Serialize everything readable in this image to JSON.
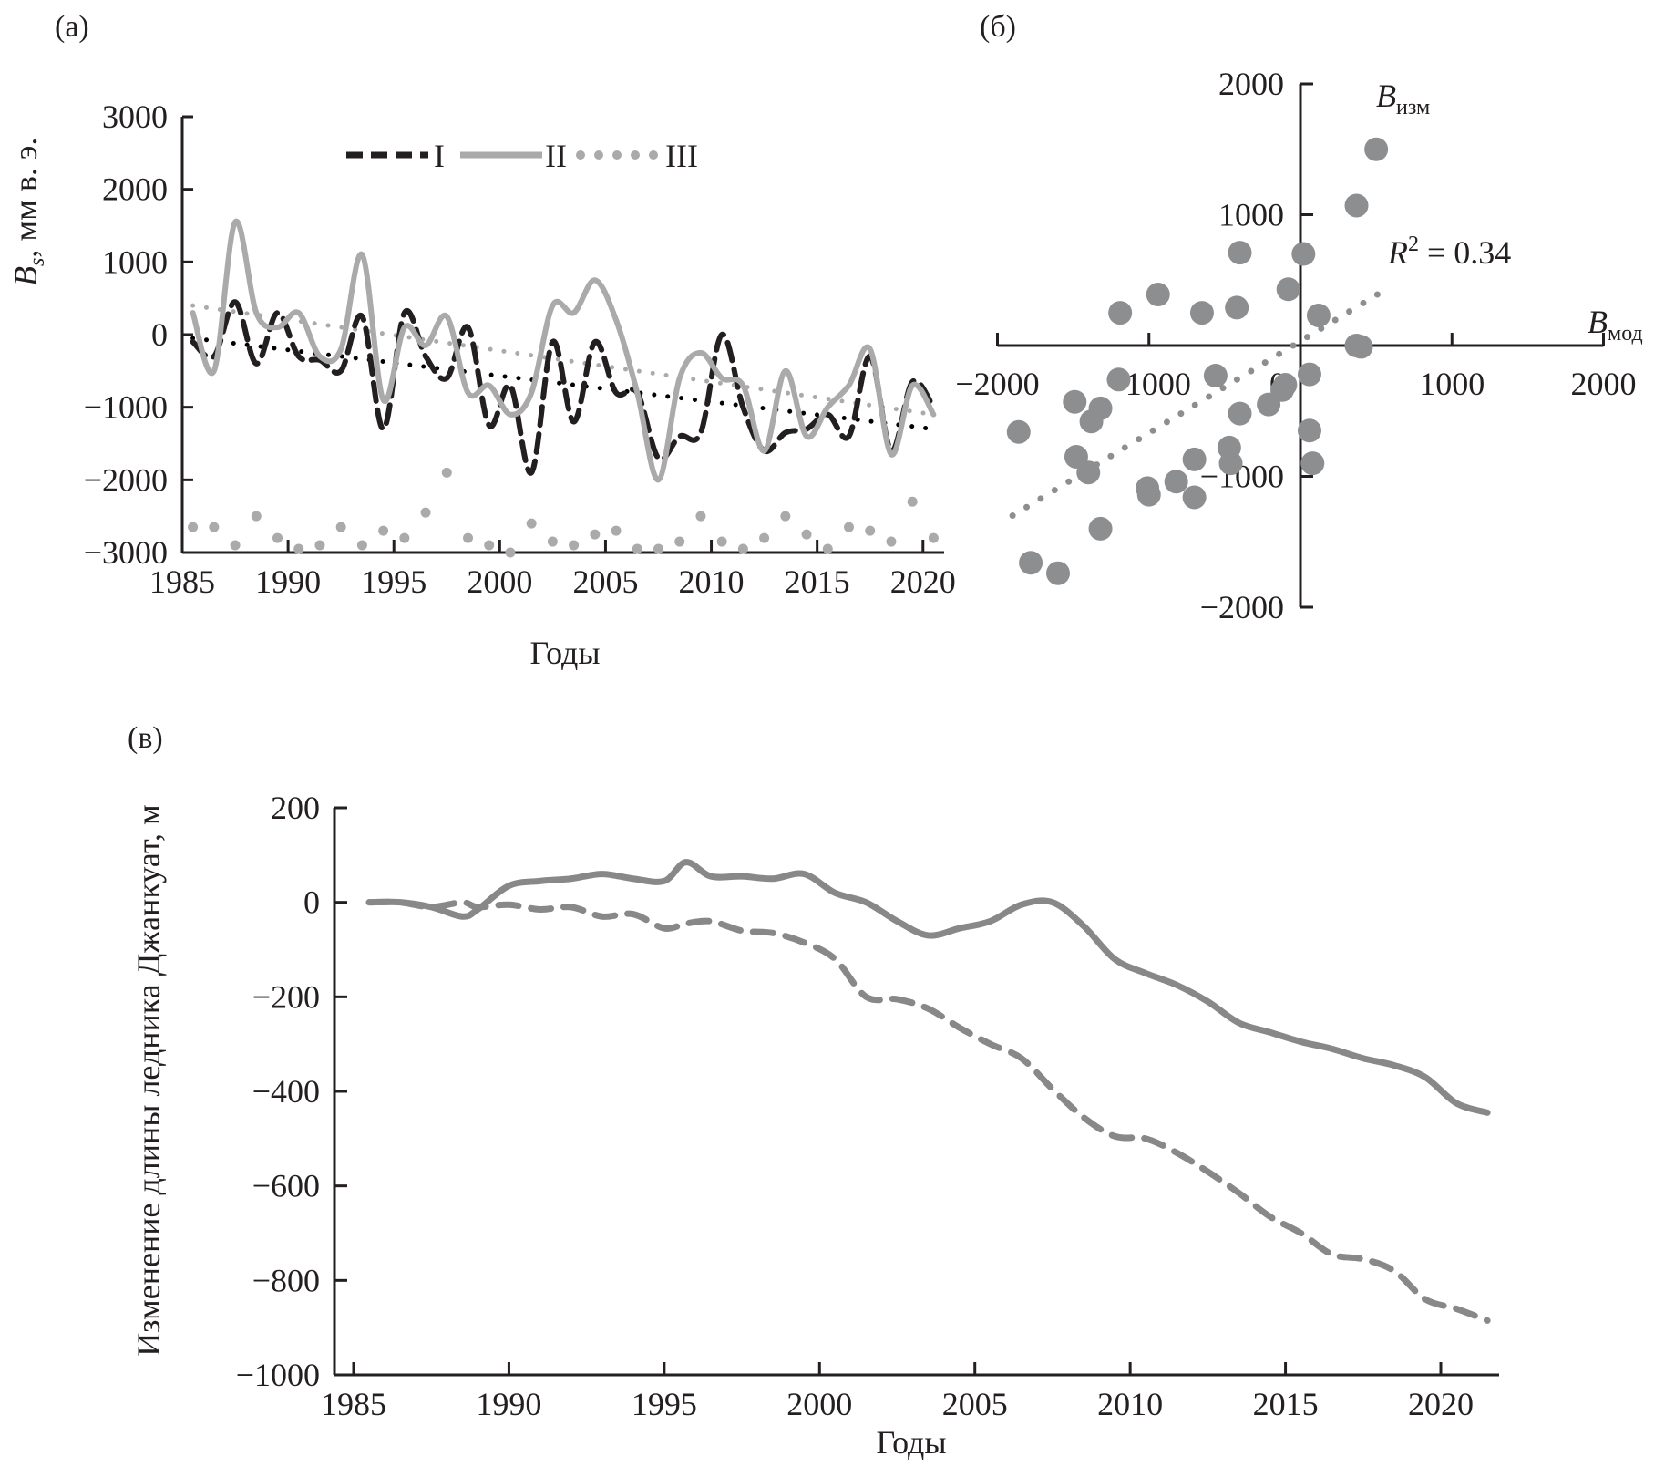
{
  "chart_data": [
    {
      "id": "panel-a",
      "panel_label": "(а)",
      "type": "line",
      "title": "",
      "xlabel": "Годы",
      "ylabel_main": "B",
      "ylabel_sub": "s",
      "ylabel_unit": ", мм в. э.",
      "xlim": [
        1985,
        2021
      ],
      "ylim": [
        -3000,
        3000
      ],
      "xticks": [
        1985,
        1990,
        1995,
        2000,
        2005,
        2010,
        2015,
        2020
      ],
      "yticks": [
        3000,
        2000,
        1000,
        0,
        -1000,
        -2000,
        -3000
      ],
      "legend": {
        "placement": "top-center",
        "entries": [
          "I",
          "II",
          "III"
        ]
      },
      "grid": false,
      "x": [
        1985.5,
        1986.5,
        1987.5,
        1988.5,
        1989.5,
        1990.5,
        1991.5,
        1992.5,
        1993.5,
        1994.5,
        1995.5,
        1996.5,
        1997.5,
        1998.5,
        1999.5,
        2000.5,
        2001.5,
        2002.5,
        2003.5,
        2004.5,
        2005.5,
        2006.5,
        2007.5,
        2008.5,
        2009.5,
        2010.5,
        2011.5,
        2012.5,
        2013.5,
        2014.5,
        2015.5,
        2016.5,
        2017.5,
        2018.5,
        2019.5,
        2020.5
      ],
      "series": [
        {
          "name": "I",
          "style": "dashed",
          "color": "#231f20",
          "values": [
            -100,
            -300,
            450,
            -400,
            300,
            -300,
            -350,
            -500,
            250,
            -1300,
            300,
            -300,
            -600,
            100,
            -1250,
            -700,
            -1900,
            -100,
            -1200,
            -100,
            -800,
            -800,
            -1700,
            -1400,
            -1350,
            0,
            -1000,
            -1600,
            -1350,
            -1300,
            -1100,
            -1400,
            -300,
            -1600,
            -650,
            -1000
          ],
          "trend": {
            "style": "dotted",
            "color": "#000000",
            "start": -50,
            "end": -1300
          }
        },
        {
          "name": "II",
          "style": "solid",
          "color": "#aaaaaa",
          "values": [
            300,
            -500,
            1550,
            300,
            100,
            300,
            -300,
            -200,
            1100,
            -900,
            100,
            -150,
            250,
            -800,
            -700,
            -1100,
            -800,
            400,
            300,
            750,
            200,
            -800,
            -2000,
            -600,
            -250,
            -600,
            -700,
            -1600,
            -500,
            -1400,
            -1000,
            -700,
            -200,
            -1650,
            -700,
            -1100
          ],
          "trend": {
            "style": "dotted",
            "color": "#aaaaaa",
            "start": 400,
            "end": -1100
          }
        },
        {
          "name": "III",
          "style": "dotted",
          "color": "#aaaaaa",
          "values": [
            -2650,
            -2650,
            -2900,
            -2500,
            -2800,
            -2950,
            -2900,
            -2650,
            -2900,
            -2700,
            -2800,
            -2450,
            -1900,
            -2800,
            -2900,
            -3000,
            -2600,
            -2850,
            -2900,
            -2750,
            -2700,
            -2950,
            -2950,
            -2850,
            -2500,
            -2850,
            -2950,
            -2800,
            -2500,
            -2750,
            -2950,
            -2650,
            -2700,
            -2850,
            -2300,
            -2800
          ]
        }
      ]
    },
    {
      "id": "panel-b",
      "panel_label": "(б)",
      "type": "scatter",
      "xlabel_main": "B",
      "xlabel_sub": "мод",
      "ylabel_main": "B",
      "ylabel_sub": "изм",
      "xlim": [
        -2000,
        2000
      ],
      "ylim": [
        -2000,
        2000
      ],
      "xticks": [
        -2000,
        -1000,
        0,
        1000,
        2000
      ],
      "yticks": [
        2000,
        1000,
        -1000,
        -2000
      ],
      "annotation": {
        "r_squared_label": "R",
        "r_squared_sup": "2",
        "r_squared_value": " = 0.34"
      },
      "point_color": "#8d8e90",
      "points": [
        [
          500,
          1500
        ],
        [
          370,
          1070
        ],
        [
          20,
          700
        ],
        [
          -400,
          710
        ],
        [
          -80,
          430
        ],
        [
          -420,
          290
        ],
        [
          -940,
          390
        ],
        [
          -650,
          250
        ],
        [
          -1190,
          250
        ],
        [
          120,
          230
        ],
        [
          370,
          0
        ],
        [
          400,
          -10
        ],
        [
          60,
          -220
        ],
        [
          -560,
          -230
        ],
        [
          -1860,
          -660
        ],
        [
          -1490,
          -430
        ],
        [
          -1320,
          -480
        ],
        [
          -1380,
          -580
        ],
        [
          -1200,
          -260
        ],
        [
          -210,
          -450
        ],
        [
          -100,
          -300
        ],
        [
          -400,
          -520
        ],
        [
          -1480,
          -850
        ],
        [
          -1400,
          -970
        ],
        [
          -820,
          -1040
        ],
        [
          -1010,
          -1090
        ],
        [
          -1000,
          -1140
        ],
        [
          -700,
          -1160
        ],
        [
          -470,
          -780
        ],
        [
          -460,
          -900
        ],
        [
          -700,
          -870
        ],
        [
          60,
          -650
        ],
        [
          80,
          -900
        ],
        [
          -1320,
          -1400
        ],
        [
          -1780,
          -1660
        ],
        [
          -1600,
          -1740
        ],
        [
          -120,
          -340
        ]
      ],
      "trend": {
        "style": "dotted",
        "x_start": -1900,
        "y_start": -1300,
        "x_end": 550,
        "y_end": 420
      }
    },
    {
      "id": "panel-c",
      "panel_label": "(в)",
      "type": "line",
      "xlabel": "Годы",
      "ylabel": "Изменение длины ледника Джанкуат, м",
      "xlim": [
        1985,
        2022
      ],
      "ylim": [
        -1000,
        200
      ],
      "xticks": [
        1985,
        1990,
        1995,
        2000,
        2005,
        2010,
        2015,
        2020
      ],
      "yticks": [
        200,
        0,
        -200,
        -400,
        -600,
        -800,
        -1000
      ],
      "grid": false,
      "x": [
        1985.5,
        1986.5,
        1987.5,
        1988.5,
        1989,
        1990,
        1991,
        1992,
        1993,
        1994,
        1995,
        1995.7,
        1996.5,
        1997.5,
        1998.5,
        1999.5,
        2000.5,
        2001.5,
        2002.5,
        2003.5,
        2004.5,
        2005.5,
        2006.5,
        2007.5,
        2008.5,
        2009.5,
        2010.5,
        2011.5,
        2012.5,
        2013.5,
        2014.5,
        2015.5,
        2016.5,
        2017.5,
        2018.5,
        2019.5,
        2020.5,
        2021.5
      ],
      "series": [
        {
          "name": "solid",
          "style": "solid",
          "color": "#888888",
          "values": [
            0,
            0,
            -10,
            -30,
            -15,
            35,
            45,
            50,
            60,
            50,
            45,
            85,
            55,
            55,
            50,
            60,
            20,
            0,
            -40,
            -70,
            -55,
            -40,
            -5,
            0,
            -50,
            -120,
            -150,
            -175,
            -210,
            -255,
            -275,
            -295,
            -310,
            -330,
            -345,
            -370,
            -425,
            -445
          ]
        },
        {
          "name": "dashed",
          "style": "dashed",
          "color": "#888888",
          "values": [
            0,
            0,
            -10,
            0,
            -10,
            -5,
            -15,
            -10,
            -30,
            -25,
            -55,
            -45,
            -40,
            -60,
            -65,
            -85,
            -120,
            -200,
            -205,
            -225,
            -265,
            -300,
            -330,
            -395,
            -455,
            -495,
            -500,
            -530,
            -570,
            -615,
            -665,
            -700,
            -745,
            -755,
            -780,
            -840,
            -860,
            -885
          ]
        }
      ]
    }
  ]
}
